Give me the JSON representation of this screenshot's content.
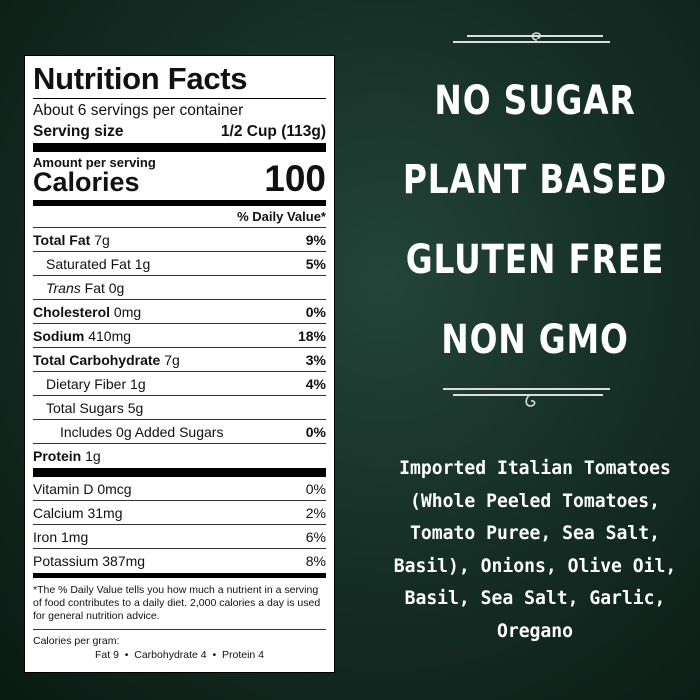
{
  "label": {
    "title": "Nutrition Facts",
    "servings": "About 6 servings per container",
    "serving_size_label": "Serving size",
    "serving_size_value": "1/2 Cup (113g)",
    "amount_per_serving": "Amount per serving",
    "calories_label": "Calories",
    "calories_value": "100",
    "dv_header": "% Daily Value*",
    "nutrients": [
      {
        "name": "Total Fat",
        "amount": "7g",
        "dv": "9%"
      },
      {
        "name": "Saturated Fat",
        "amount": "1g",
        "dv": "5%"
      },
      {
        "name": "Trans",
        "name2": "Fat",
        "amount": "0g",
        "dv": ""
      },
      {
        "name": "Cholesterol",
        "amount": "0mg",
        "dv": "0%"
      },
      {
        "name": "Sodium",
        "amount": "410mg",
        "dv": "18%"
      },
      {
        "name": "Total Carbohydrate",
        "amount": "7g",
        "dv": "3%"
      },
      {
        "name": "Dietary Fiber",
        "amount": "1g",
        "dv": "4%"
      },
      {
        "name": "Total Sugars",
        "amount": "5g",
        "dv": ""
      },
      {
        "name": "Includes 0g Added Sugars",
        "amount": "",
        "dv": "0%"
      },
      {
        "name": "Protein",
        "amount": "1g",
        "dv": ""
      }
    ],
    "vitamins": [
      {
        "name": "Vitamin D 0mcg",
        "dv": "0%"
      },
      {
        "name": "Calcium 31mg",
        "dv": "2%"
      },
      {
        "name": "Iron 1mg",
        "dv": "6%"
      },
      {
        "name": "Potassium 387mg",
        "dv": "8%"
      }
    ],
    "footnote": "*The % Daily Value tells you how much a nutrient in a serving of food contributes to a daily diet. 2,000 calories a day is used for general nutrition advice.",
    "calories_per_gram_label": "Calories per gram:",
    "calories_per_gram": "Fat 9  •  Carbohydrate 4  •  Protein 4"
  },
  "claims": [
    "NO SUGAR",
    "PLANT BASED",
    "GLUTEN FREE",
    "NON GMO"
  ],
  "ingredients": [
    "Imported Italian Tomatoes",
    "(Whole Peeled Tomatoes,",
    "Tomato Puree, Sea Salt,",
    "Basil), Onions, Olive Oil,",
    "Basil, Sea Salt, Garlic,",
    "Oregano"
  ],
  "colors": {
    "background": "#163027",
    "text": "#ffffff"
  }
}
